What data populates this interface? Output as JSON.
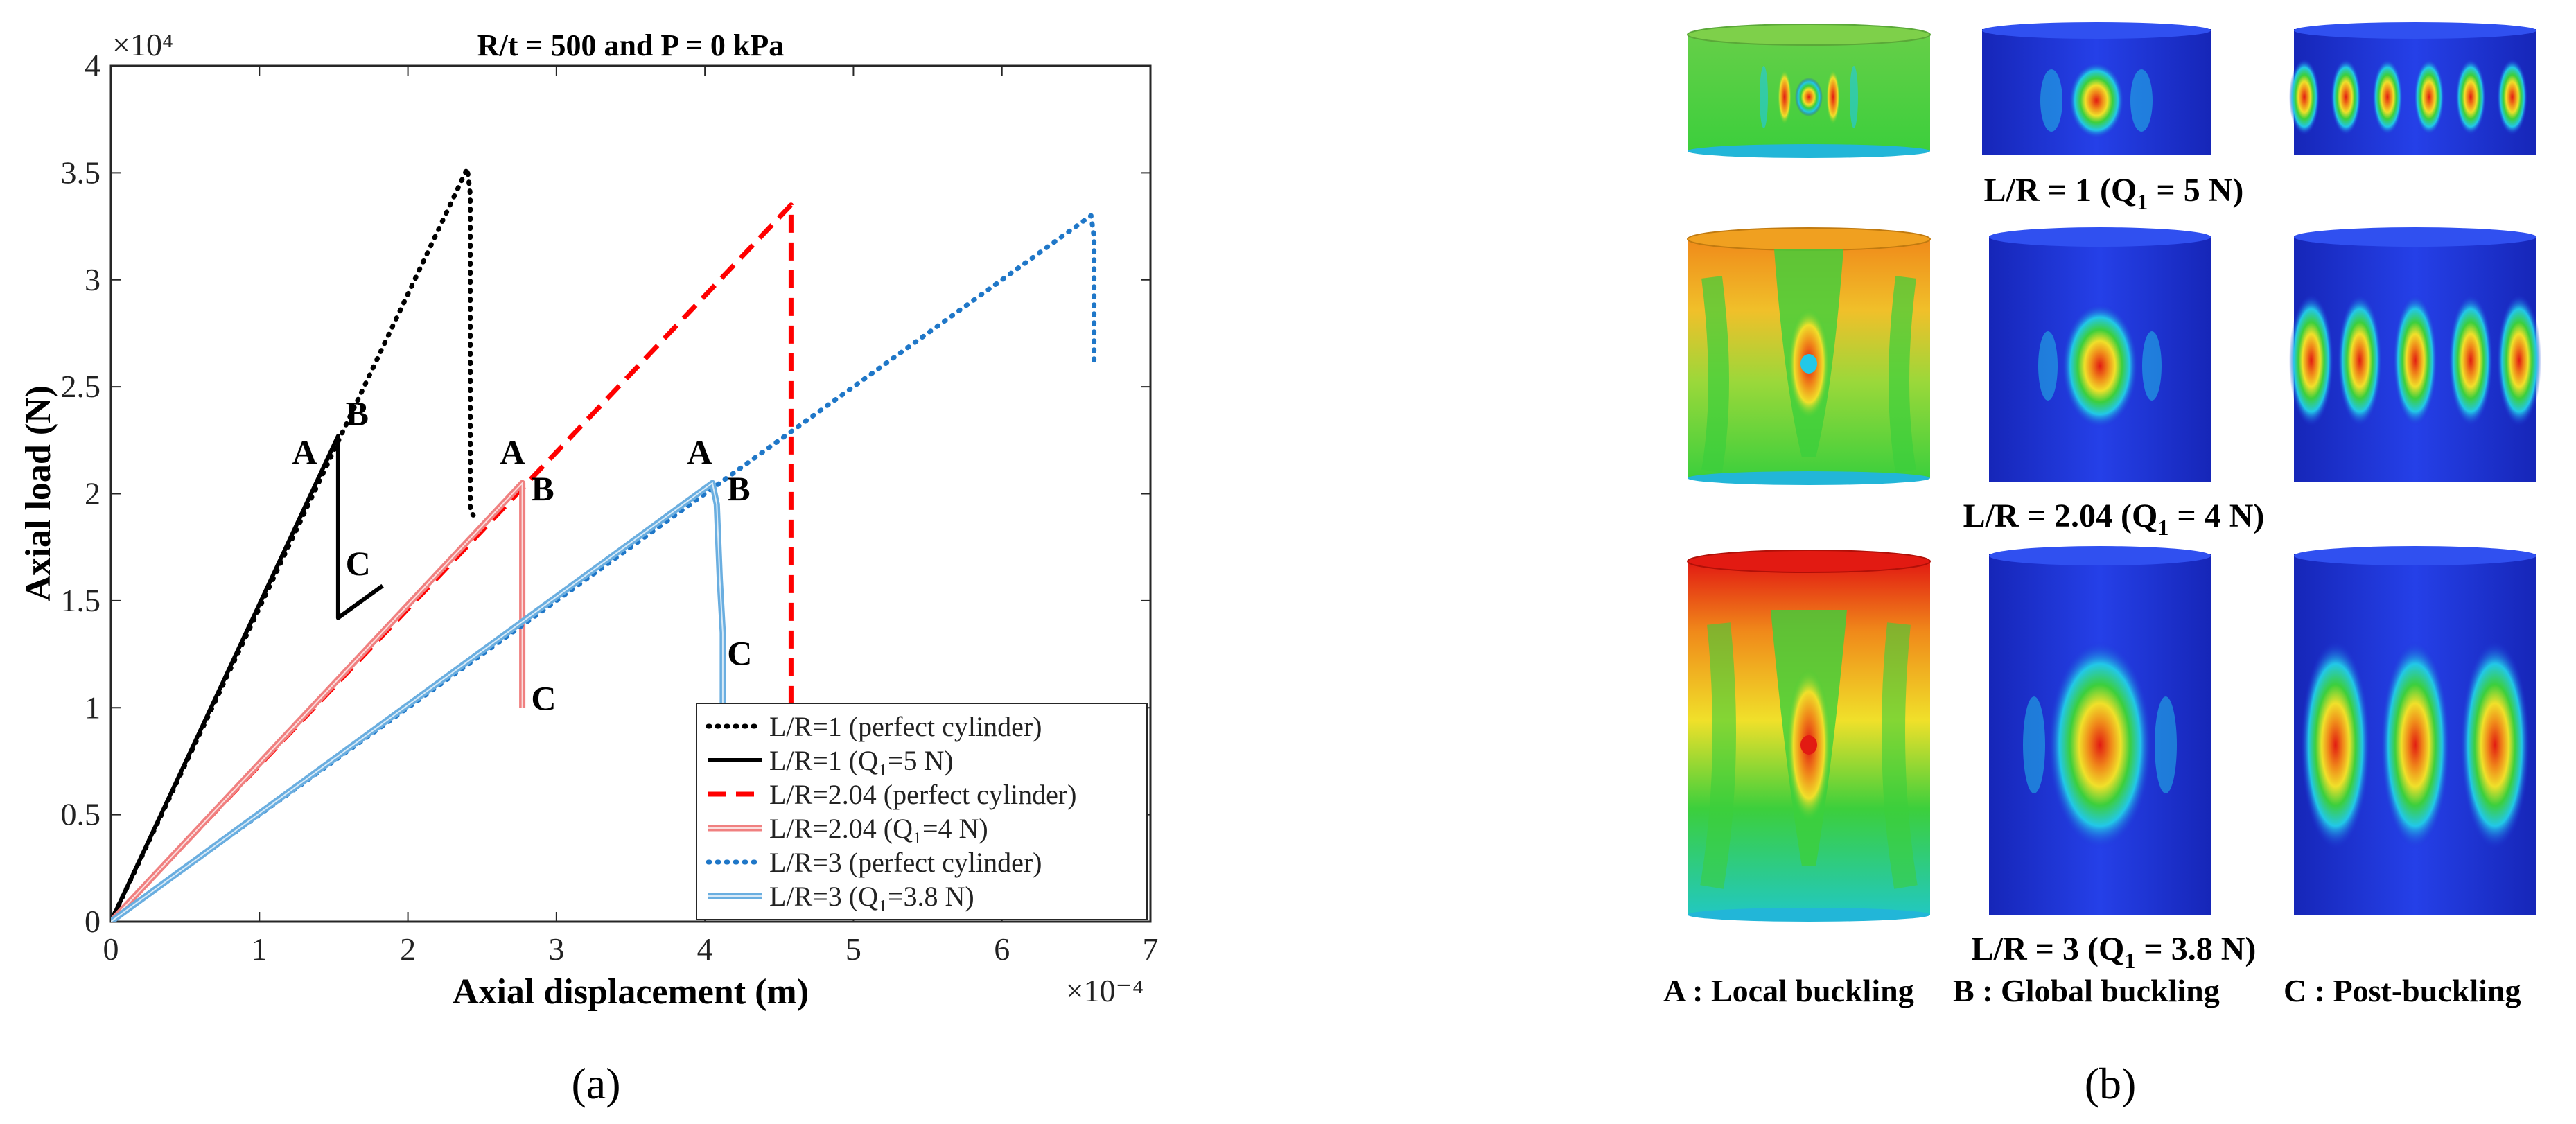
{
  "chart_data": {
    "type": "line",
    "title": "R/t = 500 and P = 0 kPa",
    "xlabel": "Axial displacement (m)",
    "ylabel": "Axial load (N)",
    "x_multiplier": "×10⁻⁴",
    "y_multiplier": "×10⁴",
    "xlim": [
      0,
      7
    ],
    "ylim": [
      0,
      4
    ],
    "x_ticks": [
      "0",
      "1",
      "2",
      "3",
      "4",
      "5",
      "6",
      "7"
    ],
    "y_ticks": [
      "0",
      "0.5",
      "1",
      "1.5",
      "2",
      "2.5",
      "3",
      "3.5",
      "4"
    ],
    "x_units": "1e-4 m",
    "y_units": "1e4 N",
    "series": [
      {
        "name": "L/R=1 (perfect cylinder)",
        "legend_label": "L/R=1 (perfect cylinder)",
        "color": "#000000",
        "style": "dotted",
        "x": [
          0,
          2.4,
          2.42,
          2.42,
          2.44
        ],
        "y": [
          0,
          3.52,
          3.4,
          1.92,
          1.9
        ]
      },
      {
        "name": "L/R=1 (Q1=5 N)",
        "legend_label": "L/R=1 (Q₁=5 N)",
        "color": "#000000",
        "style": "solid",
        "x": [
          0,
          1.53,
          1.53,
          1.83
        ],
        "y": [
          0,
          2.27,
          1.42,
          1.57
        ]
      },
      {
        "name": "L/R=2.04 (perfect cylinder)",
        "legend_label": "L/R=2.04 (perfect cylinder)",
        "color": "#ff0000",
        "style": "dashed",
        "x": [
          0,
          4.58,
          4.58
        ],
        "y": [
          0,
          3.35,
          1.0
        ]
      },
      {
        "name": "L/R=2.04 (Q1=4 N)",
        "legend_label": "L/R=2.04 (Q₁=4 N)",
        "color": "#f08080",
        "style": "double",
        "x": [
          0,
          2.77,
          2.77
        ],
        "y": [
          0,
          2.05,
          1.0
        ]
      },
      {
        "name": "L/R=3 (perfect cylinder)",
        "legend_label": "L/R=3 (perfect cylinder)",
        "color": "#1f77c8",
        "style": "dotted",
        "x": [
          0,
          6.6,
          6.62,
          6.62
        ],
        "y": [
          0,
          3.3,
          3.2,
          2.62
        ]
      },
      {
        "name": "L/R=3 (Q1=3.8 N)",
        "legend_label": "L/R=3 (Q₁=3.8 N)",
        "color": "#6aaee0",
        "style": "double",
        "x": [
          0,
          4.05,
          4.08,
          4.1,
          4.12,
          4.12
        ],
        "y": [
          0,
          2.05,
          1.95,
          1.6,
          1.35,
          1.0
        ]
      }
    ],
    "annotations": [
      {
        "text": "A",
        "x": 1.22,
        "y": 2.14
      },
      {
        "text": "B",
        "x": 1.58,
        "y": 2.32
      },
      {
        "text": "C",
        "x": 1.58,
        "y": 1.62
      },
      {
        "text": "A",
        "x": 2.62,
        "y": 2.14
      },
      {
        "text": "B",
        "x": 2.83,
        "y": 1.97
      },
      {
        "text": "C",
        "x": 2.83,
        "y": 0.99
      },
      {
        "text": "A",
        "x": 3.88,
        "y": 2.14
      },
      {
        "text": "B",
        "x": 4.15,
        "y": 1.97
      },
      {
        "text": "C",
        "x": 4.15,
        "y": 1.2
      }
    ],
    "legend_position": "bottom-right"
  },
  "panel_a_label": "(a)",
  "panel_b_label": "(b)",
  "contour_panel": {
    "rows": [
      {
        "caption": "L/R = 1 (Q",
        "caption_sub": "1",
        "caption_rest": " = 5 N)"
      },
      {
        "caption": "L/R = 2.04 (Q",
        "caption_sub": "1",
        "caption_rest": " = 4 N)"
      },
      {
        "caption": "L/R = 3 (Q",
        "caption_sub": "1",
        "caption_rest": " = 3.8 N)"
      }
    ],
    "footer": [
      "A : Local buckling",
      "B : Global buckling",
      "C : Post-buckling"
    ],
    "colors": {
      "blue": "#1e2fd6",
      "green": "#3ccf3c",
      "yellow": "#f0e02a",
      "orange": "#f08a1a",
      "red": "#e21a12",
      "cyan": "#22c8e8"
    }
  }
}
